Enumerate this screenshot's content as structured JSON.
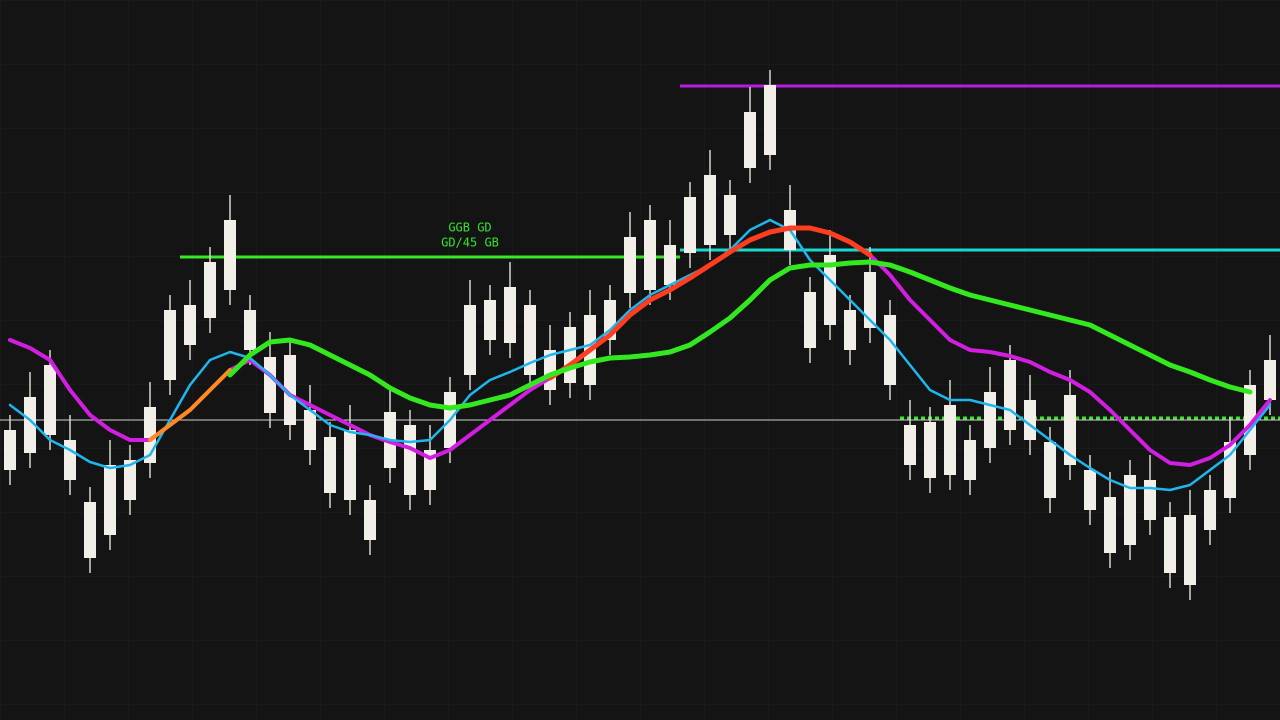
{
  "chart_data": {
    "type": "candlestick",
    "background": "#141414",
    "candle_color": "#f2efe8",
    "wick_color": "#d8d6d0",
    "ylim": [
      0,
      720
    ],
    "categories": [
      null,
      null,
      null,
      null,
      null,
      null,
      null,
      null,
      null,
      null,
      null,
      null,
      null,
      null,
      null,
      null,
      null,
      null,
      null,
      null,
      null,
      null,
      null,
      null,
      null,
      null,
      null,
      null,
      null,
      null,
      null,
      null,
      null,
      null,
      null,
      null,
      null,
      null,
      null,
      null,
      null,
      null,
      null,
      null,
      null,
      null,
      null,
      null,
      null,
      null,
      null,
      null,
      null,
      null,
      null,
      null,
      null,
      null,
      null,
      null,
      null,
      null,
      null,
      null
    ],
    "open": [
      250,
      323,
      285,
      280,
      162,
      255,
      220,
      313,
      340,
      415,
      402,
      500,
      370,
      363,
      295,
      310,
      227,
      290,
      180,
      308,
      225,
      270,
      272,
      415,
      380,
      433,
      345,
      370,
      337,
      405,
      380,
      483,
      430,
      475,
      467,
      545,
      485,
      608,
      565,
      510,
      372,
      465,
      370,
      448,
      335,
      295,
      242,
      315,
      240,
      328,
      290,
      320,
      222,
      325,
      210,
      223,
      175,
      240,
      147,
      205,
      190,
      278,
      265,
      360
    ],
    "high": [
      305,
      348,
      370,
      305,
      233,
      280,
      275,
      338,
      425,
      440,
      473,
      525,
      425,
      388,
      380,
      335,
      298,
      315,
      235,
      333,
      310,
      295,
      343,
      440,
      435,
      458,
      430,
      395,
      408,
      430,
      435,
      508,
      515,
      500,
      538,
      570,
      540,
      633,
      650,
      535,
      443,
      490,
      425,
      473,
      420,
      320,
      313,
      340,
      295,
      353,
      375,
      345,
      293,
      350,
      265,
      248,
      260,
      265,
      218,
      230,
      245,
      303,
      350,
      385
    ],
    "low": [
      235,
      252,
      270,
      225,
      147,
      170,
      205,
      242,
      325,
      360,
      387,
      415,
      355,
      292,
      280,
      255,
      212,
      205,
      165,
      237,
      210,
      215,
      257,
      330,
      365,
      362,
      330,
      315,
      322,
      320,
      365,
      412,
      415,
      420,
      452,
      460,
      470,
      537,
      550,
      455,
      357,
      380,
      355,
      377,
      320,
      240,
      227,
      230,
      225,
      257,
      275,
      265,
      207,
      240,
      195,
      152,
      160,
      185,
      132,
      120,
      175,
      207,
      250,
      305
    ],
    "close": [
      290,
      267,
      355,
      240,
      218,
      185,
      260,
      257,
      410,
      375,
      458,
      430,
      410,
      307,
      365,
      270,
      283,
      220,
      220,
      252,
      295,
      230,
      328,
      345,
      420,
      377,
      415,
      330,
      393,
      335,
      420,
      427,
      500,
      435,
      523,
      475,
      525,
      552,
      635,
      470,
      428,
      395,
      410,
      392,
      405,
      255,
      298,
      245,
      280,
      272,
      360,
      280,
      278,
      255,
      250,
      167,
      245,
      200,
      203,
      135,
      230,
      222,
      335,
      320
    ],
    "series": [
      {
        "color": "#d21ee0",
        "width": 4,
        "values": [
          380,
          372,
          360,
          330,
          305,
          290,
          280,
          280,
          295,
          310,
          330,
          350,
          360,
          345,
          325,
          315,
          305,
          295,
          285,
          278,
          272,
          262,
          270,
          285,
          300,
          315,
          330,
          342,
          355,
          370,
          385,
          405,
          420,
          430,
          442,
          455,
          468,
          480,
          488,
          492,
          492,
          487,
          478,
          465,
          445,
          420,
          400,
          380,
          370,
          368,
          364,
          358,
          348,
          340,
          328,
          310,
          290,
          270,
          257,
          255,
          262,
          275,
          295,
          320
        ]
      },
      {
        "color": "#1fb6ee",
        "width": 2.5,
        "values": [
          315,
          300,
          280,
          270,
          258,
          252,
          255,
          265,
          300,
          335,
          360,
          368,
          362,
          345,
          325,
          310,
          295,
          288,
          285,
          280,
          278,
          280,
          300,
          325,
          340,
          348,
          357,
          365,
          370,
          375,
          390,
          410,
          425,
          435,
          445,
          455,
          470,
          490,
          500,
          490,
          460,
          440,
          420,
          400,
          380,
          355,
          330,
          320,
          320,
          315,
          310,
          295,
          280,
          265,
          252,
          240,
          232,
          232,
          230,
          235,
          250,
          265,
          290,
          315
        ]
      },
      {
        "color": "#ff8a20",
        "width": 4,
        "values": [
          null,
          null,
          null,
          null,
          null,
          null,
          null,
          280,
          295,
          310,
          330,
          350,
          null,
          null,
          null,
          null,
          null,
          null,
          null,
          null,
          null,
          null,
          null,
          null,
          null,
          null,
          null,
          null,
          null,
          null,
          null,
          null,
          null,
          null,
          null,
          null,
          null,
          null,
          null,
          null,
          null,
          null,
          null,
          null,
          null,
          null,
          null,
          null,
          null,
          null,
          null,
          null,
          null,
          null,
          null,
          null,
          null,
          null,
          null,
          null,
          null,
          null,
          null,
          null
        ]
      },
      {
        "color": "#ff3d1f",
        "width": 5,
        "values": [
          null,
          null,
          null,
          null,
          null,
          null,
          null,
          null,
          null,
          null,
          null,
          null,
          null,
          null,
          null,
          null,
          null,
          null,
          null,
          null,
          null,
          null,
          null,
          null,
          null,
          null,
          null,
          342,
          355,
          370,
          385,
          405,
          420,
          430,
          442,
          455,
          468,
          480,
          488,
          492,
          492,
          487,
          478,
          465,
          null,
          null,
          null,
          null,
          null,
          null,
          null,
          null,
          null,
          null,
          null,
          null,
          null,
          null,
          null,
          null,
          null,
          null,
          null,
          null
        ]
      },
      {
        "color": "#33e81f",
        "width": 5,
        "values": [
          null,
          null,
          null,
          null,
          null,
          null,
          null,
          null,
          null,
          null,
          null,
          345,
          365,
          378,
          380,
          375,
          365,
          355,
          345,
          332,
          322,
          315,
          312,
          315,
          320,
          325,
          335,
          345,
          352,
          358,
          362,
          363,
          365,
          368,
          375,
          388,
          402,
          420,
          440,
          452,
          455,
          455,
          457,
          458,
          455,
          448,
          440,
          432,
          425,
          420,
          415,
          410,
          405,
          400,
          395,
          385,
          375,
          365,
          355,
          348,
          340,
          333,
          328,
          null
        ]
      }
    ],
    "levels": [
      {
        "value": 634,
        "start": 34,
        "end": 63,
        "color": "#b41ee0",
        "width": 3
      },
      {
        "value": 463,
        "start": 9,
        "end": 33,
        "color": "#3ae82a",
        "width": 3
      },
      {
        "value": 470,
        "start": 34,
        "end": 63,
        "color": "#19d8d0",
        "width": 3
      },
      {
        "value": 300,
        "start": 0,
        "end": 63,
        "color": "#cfcfcf",
        "width": 1
      },
      {
        "value": 302,
        "start": 45,
        "end": 63,
        "color": "#3ae82a",
        "width": 3,
        "dashed": true
      }
    ],
    "annotations": [
      {
        "text": "GGB GD",
        "x": 23,
        "y": 492,
        "color": "#2ee62e"
      },
      {
        "text": "GD/45 GB",
        "x": 23,
        "y": 477,
        "color": "#2ee62e"
      }
    ]
  }
}
